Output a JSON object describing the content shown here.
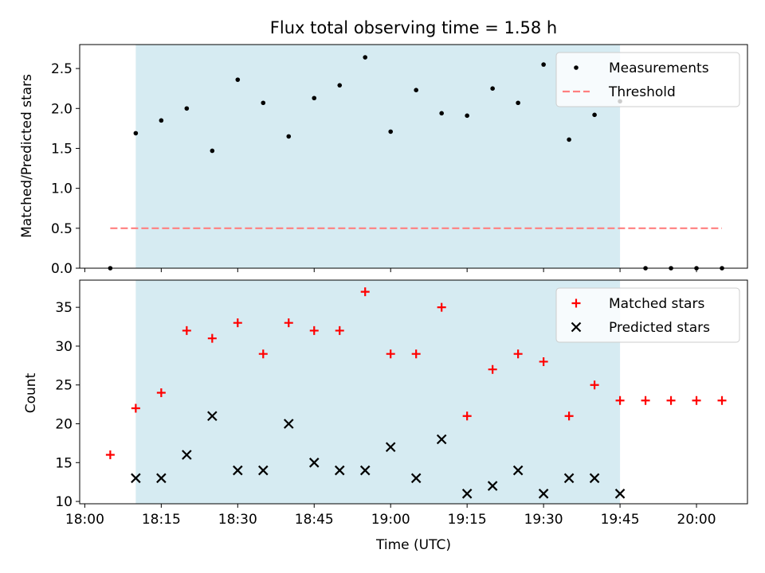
{
  "chart_data": [
    {
      "type": "scatter",
      "title": "Flux total observing time = 1.58 h",
      "xlabel": "",
      "ylabel": "Matched/Predicted stars",
      "xlim": [
        "17:59",
        "20:10"
      ],
      "ylim": [
        0,
        2.8
      ],
      "y_ticks": [
        "0.0",
        "0.5",
        "1.0",
        "1.5",
        "2.0",
        "2.5"
      ],
      "x_tick_labels_shown": false,
      "shaded_interval": [
        "18:10",
        "19:45"
      ],
      "shade_color": "#add8e6",
      "legend_position": "upper right",
      "legend": [
        "Measurements",
        "Threshold"
      ],
      "threshold": {
        "name": "Threshold",
        "value": 0.5,
        "x_range": [
          "18:05",
          "20:05"
        ],
        "color": "#ff7f7f"
      },
      "series": [
        {
          "name": "Measurements",
          "color": "#000000",
          "x": [
            "18:05",
            "18:10",
            "18:15",
            "18:20",
            "18:25",
            "18:30",
            "18:35",
            "18:40",
            "18:45",
            "18:50",
            "18:55",
            "19:00",
            "19:05",
            "19:10",
            "19:15",
            "19:20",
            "19:25",
            "19:30",
            "19:35",
            "19:40",
            "19:45",
            "19:50",
            "19:55",
            "20:00",
            "20:05"
          ],
          "y": [
            0.0,
            1.69,
            1.85,
            2.0,
            1.47,
            2.36,
            2.07,
            1.65,
            2.13,
            2.29,
            2.64,
            1.71,
            2.23,
            1.94,
            1.91,
            2.25,
            2.07,
            2.55,
            1.61,
            1.92,
            2.09,
            0.0,
            0.0,
            0.0,
            0.0
          ]
        }
      ]
    },
    {
      "type": "scatter",
      "xlabel": "Time (UTC)",
      "ylabel": "Count",
      "xlim": [
        "17:59",
        "20:10"
      ],
      "ylim": [
        9.7,
        38.5
      ],
      "y_ticks": [
        "10",
        "15",
        "20",
        "25",
        "30",
        "35"
      ],
      "x_ticks": [
        "18:00",
        "18:15",
        "18:30",
        "18:45",
        "19:00",
        "19:15",
        "19:30",
        "19:45",
        "20:00"
      ],
      "shaded_interval": [
        "18:10",
        "19:45"
      ],
      "shade_color": "#add8e6",
      "legend_position": "upper right",
      "legend": [
        "Matched stars",
        "Predicted stars"
      ],
      "series": [
        {
          "name": "Matched stars",
          "marker": "+",
          "color": "#ff0000",
          "x": [
            "18:05",
            "18:10",
            "18:15",
            "18:20",
            "18:25",
            "18:30",
            "18:35",
            "18:40",
            "18:45",
            "18:50",
            "18:55",
            "19:00",
            "19:05",
            "19:10",
            "19:15",
            "19:20",
            "19:25",
            "19:30",
            "19:35",
            "19:40",
            "19:45",
            "19:50",
            "19:55",
            "20:00",
            "20:05"
          ],
          "y": [
            16,
            22,
            24,
            32,
            31,
            33,
            29,
            33,
            32,
            32,
            37,
            29,
            29,
            35,
            21,
            27,
            29,
            28,
            21,
            25,
            23,
            23,
            23,
            23,
            23
          ]
        },
        {
          "name": "Predicted stars",
          "marker": "x",
          "color": "#000000",
          "x": [
            "18:10",
            "18:15",
            "18:20",
            "18:25",
            "18:30",
            "18:35",
            "18:40",
            "18:45",
            "18:50",
            "18:55",
            "19:00",
            "19:05",
            "19:10",
            "19:15",
            "19:20",
            "19:25",
            "19:30",
            "19:35",
            "19:40",
            "19:45"
          ],
          "y": [
            13,
            13,
            16,
            21,
            14,
            14,
            20,
            15,
            14,
            14,
            17,
            13,
            18,
            11,
            12,
            14,
            11,
            13,
            13,
            11
          ]
        }
      ]
    }
  ]
}
